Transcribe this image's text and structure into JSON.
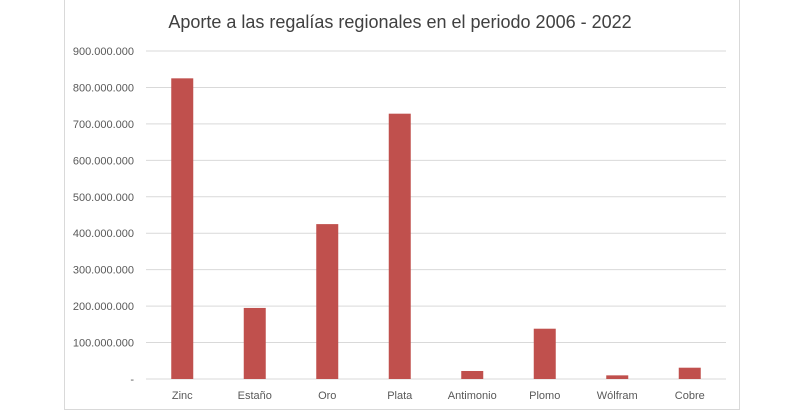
{
  "chart_data": {
    "type": "bar",
    "title": "Aporte a las regalías regionales en el periodo 2006 - 2022",
    "xlabel": "",
    "ylabel": "",
    "categories": [
      "Zinc",
      "Estaño",
      "Oro",
      "Plata",
      "Antimonio",
      "Plomo",
      "Wólfram",
      "Cobre"
    ],
    "values": [
      825000000,
      195000000,
      425000000,
      728000000,
      22000000,
      138000000,
      10000000,
      31000000
    ],
    "ylim": [
      0,
      900000000
    ],
    "yticks": [
      0,
      100000000,
      200000000,
      300000000,
      400000000,
      500000000,
      600000000,
      700000000,
      800000000,
      900000000
    ],
    "ytick_labels": [
      "-",
      "100.000.000",
      "200.000.000",
      "300.000.000",
      "400.000.000",
      "500.000.000",
      "600.000.000",
      "700.000.000",
      "800.000.000",
      "900.000.000"
    ],
    "grid": true,
    "legend": "none",
    "bar_color": "#c0504d",
    "grid_color": "#d9d9d9"
  }
}
